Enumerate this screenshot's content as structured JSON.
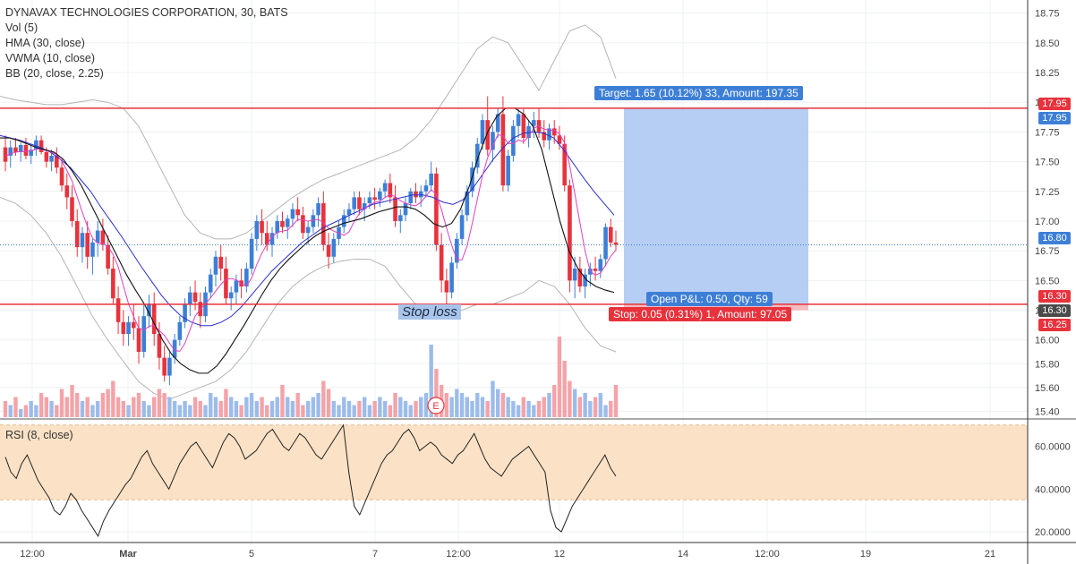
{
  "legend": {
    "title": "DYNAVAX TECHNOLOGIES CORPORATION, 30, BATS",
    "items": [
      "Vol (5)",
      "HMA (30, close)",
      "VWMA (10, close)",
      "BB (20, close, 2.25)"
    ],
    "rsi": "RSI (8, close)"
  },
  "annotations": {
    "target": "Target: 1.65 (10.12%) 33, Amount: 197.35",
    "open_pnl": "Open P&L: 0.50, Qty: 59",
    "stop": "Stop: 0.05 (0.31%) 1, Amount: 97.05",
    "stop_loss_note": "Stop loss",
    "earnings_marker": "E"
  },
  "price_tags": {
    "target_line": "17.95",
    "target_line_2": "17.95",
    "last_price": "16.80",
    "stop_line": "16.30",
    "entry": "16.30",
    "stop_level": "16.25"
  },
  "colors": {
    "up": "#3d7fd6",
    "down": "#e8323c",
    "hma": "#111111",
    "vwma": "#e040c0",
    "ma_blue": "#2a2fd0",
    "bb": "#b5b5b5",
    "target_zone": "#aac6f2",
    "stop_zone": "#f4b5b8",
    "rsi_band": "#fbe2c6",
    "line_red": "#e8323c",
    "tag_blue": "#3d7fd6",
    "tag_red": "#e8323c",
    "tag_dark": "#4a4a4a"
  },
  "chart_data": {
    "type": "candlestick",
    "price_axis": {
      "ticks": [
        "18.75",
        "18.50",
        "18.25",
        "18.00",
        "17.75",
        "17.50",
        "17.25",
        "17.00",
        "16.75",
        "16.50",
        "16.25",
        "16.00",
        "15.80",
        "15.60",
        "15.40"
      ],
      "ylim": [
        15.35,
        18.8
      ]
    },
    "rsi_axis": {
      "ticks": [
        "60.0000",
        "40.0000",
        "20.0000"
      ],
      "band": [
        35,
        70
      ],
      "ylim": [
        15,
        72
      ]
    },
    "time_axis": [
      "12:00",
      "Mar",
      "5",
      "7",
      "12:00",
      "12",
      "14",
      "12:00",
      "19",
      "21"
    ],
    "levels": {
      "target": 17.95,
      "stop": 16.3,
      "last": 16.8
    },
    "candles": [
      [
        17.62,
        17.72,
        17.42,
        17.5
      ],
      [
        17.55,
        17.68,
        17.45,
        17.62
      ],
      [
        17.62,
        17.7,
        17.55,
        17.58
      ],
      [
        17.58,
        17.66,
        17.5,
        17.64
      ],
      [
        17.64,
        17.7,
        17.52,
        17.55
      ],
      [
        17.55,
        17.65,
        17.48,
        17.6
      ],
      [
        17.6,
        17.72,
        17.55,
        17.68
      ],
      [
        17.68,
        17.72,
        17.56,
        17.58
      ],
      [
        17.58,
        17.62,
        17.45,
        17.5
      ],
      [
        17.5,
        17.6,
        17.42,
        17.55
      ],
      [
        17.55,
        17.62,
        17.4,
        17.45
      ],
      [
        17.45,
        17.52,
        17.25,
        17.3
      ],
      [
        17.3,
        17.4,
        17.1,
        17.2
      ],
      [
        17.2,
        17.3,
        16.95,
        17.0
      ],
      [
        17.0,
        17.1,
        16.7,
        16.78
      ],
      [
        16.78,
        16.95,
        16.65,
        16.9
      ],
      [
        16.9,
        17.0,
        16.6,
        16.7
      ],
      [
        16.7,
        16.85,
        16.55,
        16.82
      ],
      [
        16.82,
        17.0,
        16.7,
        16.92
      ],
      [
        16.92,
        17.02,
        16.75,
        16.8
      ],
      [
        16.8,
        16.88,
        16.55,
        16.6
      ],
      [
        16.6,
        16.7,
        16.3,
        16.35
      ],
      [
        16.35,
        16.45,
        16.05,
        16.15
      ],
      [
        16.15,
        16.25,
        15.95,
        16.05
      ],
      [
        16.05,
        16.2,
        15.95,
        16.15
      ],
      [
        16.15,
        16.3,
        16.0,
        16.1
      ],
      [
        16.1,
        16.2,
        15.8,
        15.9
      ],
      [
        15.9,
        16.3,
        15.85,
        16.2
      ],
      [
        16.2,
        16.38,
        16.1,
        16.3
      ],
      [
        16.3,
        16.4,
        15.95,
        16.05
      ],
      [
        16.05,
        16.15,
        15.75,
        15.85
      ],
      [
        15.85,
        15.95,
        15.65,
        15.7
      ],
      [
        15.7,
        15.9,
        15.62,
        15.85
      ],
      [
        15.85,
        16.05,
        15.8,
        16.0
      ],
      [
        16.0,
        16.2,
        15.95,
        16.15
      ],
      [
        16.15,
        16.35,
        16.1,
        16.3
      ],
      [
        16.3,
        16.45,
        16.2,
        16.4
      ],
      [
        16.4,
        16.5,
        16.25,
        16.32
      ],
      [
        16.32,
        16.4,
        16.1,
        16.2
      ],
      [
        16.2,
        16.45,
        16.15,
        16.4
      ],
      [
        16.4,
        16.6,
        16.35,
        16.55
      ],
      [
        16.55,
        16.75,
        16.45,
        16.7
      ],
      [
        16.7,
        16.8,
        16.5,
        16.6
      ],
      [
        16.6,
        16.7,
        16.3,
        16.35
      ],
      [
        16.35,
        16.45,
        16.25,
        16.4
      ],
      [
        16.4,
        16.55,
        16.3,
        16.5
      ],
      [
        16.5,
        16.6,
        16.35,
        16.45
      ],
      [
        16.45,
        16.65,
        16.4,
        16.6
      ],
      [
        16.6,
        16.9,
        16.55,
        16.85
      ],
      [
        16.85,
        17.05,
        16.75,
        17.0
      ],
      [
        17.0,
        17.1,
        16.8,
        16.9
      ],
      [
        16.9,
        17.0,
        16.75,
        16.8
      ],
      [
        16.8,
        16.95,
        16.7,
        16.9
      ],
      [
        16.9,
        17.05,
        16.85,
        17.0
      ],
      [
        17.0,
        17.08,
        16.9,
        16.95
      ],
      [
        16.95,
        17.05,
        16.85,
        17.02
      ],
      [
        17.02,
        17.15,
        16.95,
        17.1
      ],
      [
        17.1,
        17.2,
        17.0,
        17.05
      ],
      [
        17.05,
        17.12,
        16.85,
        16.9
      ],
      [
        16.9,
        17.0,
        16.8,
        16.95
      ],
      [
        16.95,
        17.1,
        16.9,
        17.05
      ],
      [
        17.05,
        17.2,
        16.95,
        17.15
      ],
      [
        17.15,
        17.25,
        16.75,
        16.8
      ],
      [
        16.8,
        16.9,
        16.6,
        16.7
      ],
      [
        16.7,
        16.9,
        16.65,
        16.85
      ],
      [
        16.85,
        17.0,
        16.8,
        16.95
      ],
      [
        16.95,
        17.1,
        16.9,
        17.05
      ],
      [
        17.05,
        17.15,
        17.0,
        17.1
      ],
      [
        17.1,
        17.25,
        17.05,
        17.2
      ],
      [
        17.2,
        17.25,
        17.05,
        17.1
      ],
      [
        17.1,
        17.2,
        17.0,
        17.15
      ],
      [
        17.15,
        17.25,
        17.1,
        17.2
      ],
      [
        17.2,
        17.28,
        17.1,
        17.18
      ],
      [
        17.18,
        17.28,
        17.12,
        17.25
      ],
      [
        17.25,
        17.35,
        17.2,
        17.32
      ],
      [
        17.32,
        17.4,
        17.15,
        17.2
      ],
      [
        17.2,
        17.3,
        16.95,
        17.0
      ],
      [
        17.0,
        17.1,
        16.9,
        17.05
      ],
      [
        17.05,
        17.2,
        17.0,
        17.15
      ],
      [
        17.15,
        17.28,
        17.1,
        17.25
      ],
      [
        17.25,
        17.32,
        17.15,
        17.2
      ],
      [
        17.2,
        17.3,
        17.12,
        17.25
      ],
      [
        17.25,
        17.35,
        17.2,
        17.3
      ],
      [
        17.3,
        17.5,
        17.25,
        17.4
      ],
      [
        17.4,
        17.45,
        16.75,
        16.8
      ],
      [
        16.8,
        16.9,
        16.4,
        16.5
      ],
      [
        16.5,
        16.6,
        16.3,
        16.4
      ],
      [
        16.4,
        16.7,
        16.35,
        16.65
      ],
      [
        16.65,
        16.9,
        16.6,
        16.85
      ],
      [
        16.85,
        17.1,
        16.8,
        17.05
      ],
      [
        17.05,
        17.3,
        17.0,
        17.25
      ],
      [
        17.25,
        17.5,
        17.2,
        17.45
      ],
      [
        17.45,
        17.7,
        17.4,
        17.65
      ],
      [
        17.65,
        17.9,
        17.6,
        17.85
      ],
      [
        17.85,
        18.05,
        17.55,
        17.6
      ],
      [
        17.6,
        17.8,
        17.5,
        17.75
      ],
      [
        17.75,
        17.95,
        17.7,
        17.9
      ],
      [
        17.9,
        18.05,
        17.25,
        17.3
      ],
      [
        17.3,
        17.6,
        17.25,
        17.55
      ],
      [
        17.55,
        17.85,
        17.5,
        17.8
      ],
      [
        17.8,
        17.95,
        17.7,
        17.9
      ],
      [
        17.9,
        17.95,
        17.65,
        17.7
      ],
      [
        17.7,
        17.85,
        17.62,
        17.8
      ],
      [
        17.8,
        17.92,
        17.7,
        17.85
      ],
      [
        17.85,
        17.95,
        17.7,
        17.75
      ],
      [
        17.75,
        17.85,
        17.62,
        17.68
      ],
      [
        17.68,
        17.82,
        17.6,
        17.78
      ],
      [
        17.78,
        17.85,
        17.65,
        17.72
      ],
      [
        17.72,
        17.8,
        17.6,
        17.65
      ],
      [
        17.65,
        17.72,
        17.25,
        17.3
      ],
      [
        17.3,
        17.35,
        16.4,
        16.5
      ],
      [
        16.5,
        16.7,
        16.35,
        16.6
      ],
      [
        16.6,
        16.7,
        16.4,
        16.45
      ],
      [
        16.45,
        16.6,
        16.35,
        16.55
      ],
      [
        16.55,
        16.65,
        16.45,
        16.6
      ],
      [
        16.6,
        16.7,
        16.5,
        16.58
      ],
      [
        16.58,
        16.72,
        16.52,
        16.68
      ],
      [
        16.68,
        16.98,
        16.62,
        16.95
      ],
      [
        16.95,
        17.02,
        16.78,
        16.82
      ],
      [
        16.82,
        16.92,
        16.75,
        16.8
      ]
    ],
    "volume": [
      4,
      3,
      5,
      2,
      3,
      4,
      3,
      6,
      5,
      4,
      3,
      7,
      5,
      8,
      6,
      4,
      5,
      3,
      4,
      6,
      7,
      9,
      5,
      4,
      3,
      5,
      6,
      4,
      3,
      5,
      7,
      6,
      5,
      4,
      3,
      4,
      3,
      5,
      4,
      3,
      6,
      5,
      4,
      7,
      5,
      4,
      3,
      5,
      6,
      4,
      5,
      3,
      4,
      5,
      8,
      5,
      4,
      6,
      3,
      4,
      5,
      6,
      9,
      7,
      4,
      3,
      5,
      4,
      3,
      4,
      5,
      3,
      4,
      5,
      4,
      3,
      6,
      5,
      4,
      3,
      4,
      5,
      6,
      18,
      12,
      8,
      6,
      5,
      7,
      6,
      5,
      4,
      6,
      5,
      4,
      9,
      7,
      6,
      5,
      4,
      3,
      5,
      4,
      3,
      4,
      5,
      6,
      8,
      20,
      14,
      9,
      7,
      5,
      6,
      4,
      5,
      6,
      3,
      4,
      8
    ],
    "rsi": [
      55,
      48,
      45,
      52,
      56,
      50,
      44,
      40,
      36,
      30,
      28,
      32,
      38,
      35,
      30,
      26,
      22,
      18,
      25,
      30,
      34,
      38,
      42,
      45,
      50,
      55,
      58,
      52,
      48,
      44,
      40,
      46,
      52,
      56,
      60,
      62,
      58,
      54,
      50,
      56,
      62,
      66,
      64,
      60,
      54,
      56,
      58,
      62,
      66,
      68,
      64,
      60,
      58,
      62,
      66,
      64,
      60,
      56,
      54,
      58,
      62,
      66,
      70,
      48,
      32,
      28,
      34,
      40,
      46,
      52,
      56,
      58,
      62,
      66,
      68,
      64,
      58,
      60,
      62,
      60,
      56,
      54,
      52,
      56,
      58,
      62,
      66,
      60,
      54,
      50,
      48,
      46,
      50,
      54,
      56,
      58,
      60,
      56,
      52,
      48,
      30,
      22,
      20,
      26,
      32,
      36,
      40,
      44,
      48,
      52,
      56,
      50,
      46
    ],
    "hma": [
      17.7,
      17.7,
      17.68,
      17.65,
      17.62,
      17.6,
      17.58,
      17.52,
      17.42,
      17.3,
      17.15,
      17.0,
      16.85,
      16.7,
      16.55,
      16.42,
      16.3,
      16.15,
      16.0,
      15.88,
      15.8,
      15.75,
      15.72,
      15.72,
      15.78,
      15.88,
      16.0,
      16.12,
      16.25,
      16.38,
      16.5,
      16.6,
      16.68,
      16.75,
      16.82,
      16.88,
      16.92,
      16.95,
      16.98,
      17.0,
      17.02,
      17.05,
      17.08,
      17.1,
      17.12,
      17.12,
      17.1,
      17.05,
      16.98,
      16.95,
      16.98,
      17.1,
      17.3,
      17.55,
      17.75,
      17.88,
      17.95,
      17.95,
      17.9,
      17.8,
      17.6,
      17.3,
      17.0,
      16.75,
      16.6,
      16.5,
      16.45,
      16.42,
      16.4
    ],
    "ma_blue": [
      17.72,
      17.7,
      17.68,
      17.65,
      17.62,
      17.58,
      17.52,
      17.45,
      17.35,
      17.25,
      17.12,
      17.0,
      16.88,
      16.75,
      16.62,
      16.5,
      16.38,
      16.28,
      16.2,
      16.15,
      16.12,
      16.12,
      16.15,
      16.2,
      16.28,
      16.38,
      16.48,
      16.58,
      16.66,
      16.74,
      16.82,
      16.88,
      16.94,
      16.98,
      17.02,
      17.06,
      17.1,
      17.14,
      17.16,
      17.18,
      17.2,
      17.22,
      17.22,
      17.2,
      17.16,
      17.14,
      17.18,
      17.28,
      17.4,
      17.52,
      17.62,
      17.7,
      17.74,
      17.75,
      17.74,
      17.7,
      17.6,
      17.48,
      17.36,
      17.25,
      17.15,
      17.05
    ],
    "bb_upper": [
      18.05,
      18.02,
      18.0,
      17.98,
      17.98,
      18.0,
      18.02,
      18.0,
      17.95,
      17.8,
      17.55,
      17.3,
      17.05,
      16.9,
      16.85,
      16.85,
      16.9,
      17.0,
      17.1,
      17.2,
      17.28,
      17.35,
      17.4,
      17.45,
      17.5,
      17.55,
      17.6,
      17.7,
      17.85,
      18.05,
      18.25,
      18.45,
      18.55,
      18.5,
      18.3,
      18.1,
      18.35,
      18.6,
      18.65,
      18.55,
      18.2
    ],
    "bb_lower": [
      17.2,
      17.15,
      17.05,
      16.9,
      16.7,
      16.45,
      16.2,
      16.0,
      15.82,
      15.65,
      15.55,
      15.5,
      15.55,
      15.6,
      15.65,
      15.75,
      15.9,
      16.1,
      16.3,
      16.45,
      16.55,
      16.62,
      16.66,
      16.68,
      16.68,
      16.62,
      16.45,
      16.3,
      16.2,
      16.2,
      16.25,
      16.3,
      16.3,
      16.35,
      16.4,
      16.5,
      16.45,
      16.3,
      16.1,
      15.95,
      15.9
    ]
  }
}
